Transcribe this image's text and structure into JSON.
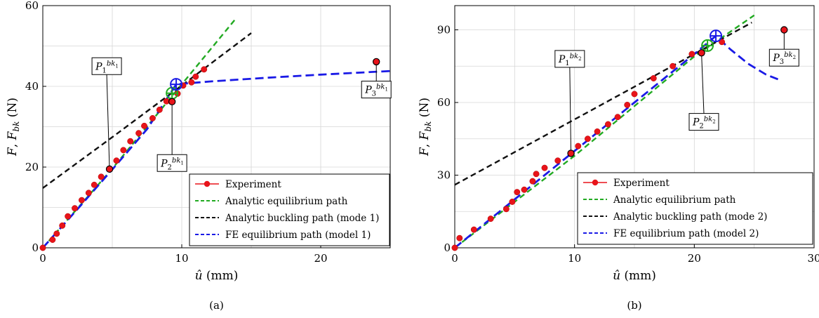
{
  "chart_data": [
    {
      "type": "line",
      "panel_label": "(a)",
      "xlabel": "û (mm)",
      "ylabel": "F, F_bk (N)",
      "xlim": [
        0,
        25
      ],
      "ylim": [
        0,
        60
      ],
      "xticks": [
        0,
        10,
        20
      ],
      "yticks": [
        0,
        20,
        40,
        60
      ],
      "grid": true,
      "legend_position": "bottom-right",
      "series": [
        {
          "name": "Experiment",
          "style": "marker-line",
          "color": "#e8141a",
          "x": [
            0,
            0.7,
            1.0,
            1.4,
            1.8,
            2.3,
            2.8,
            3.3,
            3.7,
            4.2,
            4.8,
            5.3,
            5.8,
            6.3,
            6.9,
            7.3,
            7.9,
            8.4,
            8.9,
            9.3,
            9.7,
            10.1,
            10.7,
            11.0,
            11.6
          ],
          "y": [
            0,
            2,
            3.5,
            5.5,
            7.8,
            9.8,
            11.8,
            13.6,
            15.6,
            17.6,
            19.5,
            21.6,
            24.2,
            26.4,
            28.4,
            30.2,
            32.1,
            34.2,
            36.3,
            36.2,
            38.2,
            40.2,
            41.0,
            42.4,
            44.2
          ]
        },
        {
          "name": "Analytic equilibrium path",
          "style": "dashed",
          "color": "#22aa22",
          "x": [
            0,
            5,
            10,
            13.8
          ],
          "y": [
            0,
            19.6,
            40.5,
            56.4
          ]
        },
        {
          "name": "Analytic buckling path (mode 1)",
          "style": "dashed",
          "color": "#111111",
          "x": [
            0,
            5,
            10,
            15
          ],
          "y": [
            14.8,
            27.4,
            40.2,
            53.2
          ]
        },
        {
          "name": "FE equilibrium path (model 1)",
          "style": "dashed",
          "color": "#1a1ae6",
          "x": [
            0,
            2.5,
            5,
            7.5,
            9.6,
            12,
            16,
            20,
            25
          ],
          "y": [
            0,
            9.6,
            19.4,
            29.4,
            40.5,
            41.2,
            42.1,
            42.9,
            43.8
          ]
        }
      ],
      "markers": [
        {
          "kind": "circle-cross",
          "x": 9.3,
          "y": 38.3,
          "color": "#22aa22"
        },
        {
          "kind": "circle-cross",
          "x": 9.6,
          "y": 40.5,
          "color": "#1a1ae6"
        }
      ],
      "points": [
        {
          "label_base": "P",
          "label_sub": "1",
          "label_sup": "bk",
          "label_sup_sub": "1",
          "x": 4.8,
          "y": 19.5,
          "label_x": 4.6,
          "label_y": 45.0,
          "label_side": "above"
        },
        {
          "label_base": "P",
          "label_sub": "2",
          "label_sup": "bk",
          "label_sup_sub": "1",
          "x": 9.3,
          "y": 36.2,
          "label_x": 9.3,
          "label_y": 21.0,
          "label_side": "below"
        },
        {
          "label_base": "P",
          "label_sub": "3",
          "label_sup": "bk",
          "label_sup_sub": "1",
          "x": 24.0,
          "y": 46.1,
          "label_x": 24.0,
          "label_y": 39.2,
          "label_side": "below"
        }
      ]
    },
    {
      "type": "line",
      "panel_label": "(b)",
      "xlabel": "û (mm)",
      "ylabel": "F, F_bk (N)",
      "xlim": [
        0,
        30
      ],
      "ylim": [
        0,
        100
      ],
      "xticks": [
        0,
        10,
        20,
        30
      ],
      "yticks": [
        0,
        30,
        60,
        90
      ],
      "grid": true,
      "legend_position": "bottom-right",
      "series": [
        {
          "name": "Experiment",
          "style": "marker-line",
          "color": "#e8141a",
          "x": [
            0,
            0.4,
            1.6,
            3.0,
            4.3,
            4.8,
            5.2,
            5.8,
            6.5,
            6.8,
            7.5,
            8.6,
            9.7,
            10.3,
            11.1,
            11.9,
            12.8,
            13.6,
            14.4,
            15.0,
            16.6,
            18.2,
            19.8,
            20.6,
            22.3
          ],
          "y": [
            0,
            4,
            7.5,
            12,
            16,
            19,
            23,
            24,
            27.5,
            30.5,
            33,
            36,
            39,
            42,
            45,
            48,
            51,
            54,
            59,
            63.5,
            70,
            75,
            80,
            80.5,
            85
          ]
        },
        {
          "name": "Analytic equilibrium path",
          "style": "dashed",
          "color": "#22aa22",
          "x": [
            0,
            10,
            20,
            25
          ],
          "y": [
            0,
            38,
            79,
            96
          ]
        },
        {
          "name": "Analytic buckling path (mode 2)",
          "style": "dashed",
          "color": "#111111",
          "x": [
            0,
            10,
            20,
            24.8
          ],
          "y": [
            26,
            53,
            80,
            93
          ]
        },
        {
          "name": "FE equilibrium path (model 2)",
          "style": "dashed",
          "color": "#1a1ae6",
          "x": [
            0,
            5,
            10,
            15,
            20,
            21.8,
            23,
            24.5,
            26,
            27.3
          ],
          "y": [
            0,
            20,
            40,
            60,
            80,
            87.5,
            82,
            76,
            71.5,
            69
          ]
        }
      ],
      "markers": [
        {
          "kind": "circle-cross",
          "x": 21.1,
          "y": 83.5,
          "color": "#22aa22"
        },
        {
          "kind": "circle-cross",
          "x": 21.8,
          "y": 87.5,
          "color": "#1a1ae6"
        }
      ],
      "points": [
        {
          "label_base": "P",
          "label_sub": "1",
          "label_sup": "bk",
          "label_sup_sub": "2",
          "x": 9.7,
          "y": 39,
          "label_x": 9.6,
          "label_y": 78.0,
          "label_side": "above"
        },
        {
          "label_base": "P",
          "label_sub": "2",
          "label_sup": "bk",
          "label_sup_sub": "2",
          "x": 20.6,
          "y": 80.5,
          "label_x": 20.8,
          "label_y": 52.0,
          "label_side": "below"
        },
        {
          "label_base": "P",
          "label_sub": "3",
          "label_sup": "bk",
          "label_sup_sub": "2",
          "x": 27.5,
          "y": 90,
          "label_x": 27.5,
          "label_y": 78.5,
          "label_side": "below"
        }
      ]
    }
  ]
}
